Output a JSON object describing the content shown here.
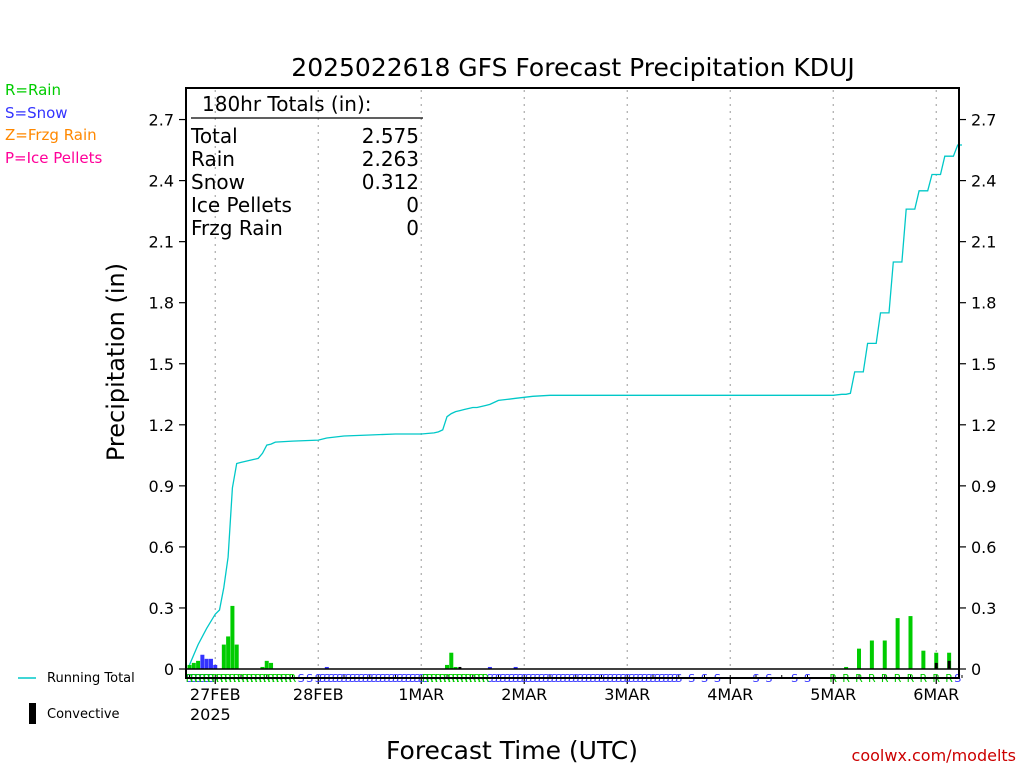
{
  "chart_data": {
    "type": "bar",
    "title": "2025022618 GFS Forecast Precipitation KDUJ",
    "xlabel": "Forecast Time (UTC)",
    "ylabel": "Precipitation (in)",
    "ylim": [
      0,
      2.8
    ],
    "yticks": [
      0,
      0.3,
      0.6,
      0.9,
      1.2,
      1.5,
      1.8,
      2.1,
      2.4,
      2.7
    ],
    "ytick_labels": [
      "0",
      "0.3",
      "0.6",
      "0.9",
      "1.2",
      "1.5",
      "1.8",
      "2.1",
      "2.4",
      "2.7"
    ],
    "x_unit": "forecast hour",
    "xlim": [
      -3,
      180
    ],
    "xtick_hours": [
      6,
      30,
      54,
      78,
      102,
      126,
      150,
      174
    ],
    "xtick_labels": [
      "27FEB",
      "28FEB",
      "1MAR",
      "2MAR",
      "3MAR",
      "4MAR",
      "5MAR",
      "6MAR"
    ],
    "year_label": "2025",
    "grid": "vertical dotted at each day",
    "key": [
      {
        "text": "R=Rain",
        "color": "#00cc00"
      },
      {
        "text": "S=Snow",
        "color": "#3333ff"
      },
      {
        "text": "Z=Frzg Rain",
        "color": "#ff8800"
      },
      {
        "text": "P=Ice Pellets",
        "color": "#ff0099"
      }
    ],
    "legend": [
      {
        "text": "Running Total",
        "color": "#00c8c8"
      },
      {
        "text": "Convective",
        "color": "#000000"
      }
    ],
    "totals": {
      "header": "180hr Totals (in):",
      "rows": [
        {
          "label": "Total",
          "value": "2.575"
        },
        {
          "label": "Rain",
          "value": "2.263"
        },
        {
          "label": "Snow",
          "value": "0.312"
        },
        {
          "label": "Ice Pellets",
          "value": "0"
        },
        {
          "label": "Frzg Rain",
          "value": "0"
        }
      ]
    },
    "series": [
      {
        "name": "Rain",
        "color": "#00cc00",
        "points": [
          {
            "hour": 0,
            "value": 0.02
          },
          {
            "hour": 1,
            "value": 0.03
          },
          {
            "hour": 2,
            "value": 0.04
          },
          {
            "hour": 8,
            "value": 0.12
          },
          {
            "hour": 9,
            "value": 0.16
          },
          {
            "hour": 10,
            "value": 0.31
          },
          {
            "hour": 11,
            "value": 0.12
          },
          {
            "hour": 17,
            "value": 0.01
          },
          {
            "hour": 18,
            "value": 0.04
          },
          {
            "hour": 19,
            "value": 0.03
          },
          {
            "hour": 60,
            "value": 0.02
          },
          {
            "hour": 61,
            "value": 0.08
          },
          {
            "hour": 62,
            "value": 0.01
          },
          {
            "hour": 153,
            "value": 0.01
          },
          {
            "hour": 156,
            "value": 0.1
          },
          {
            "hour": 159,
            "value": 0.14
          },
          {
            "hour": 162,
            "value": 0.14
          },
          {
            "hour": 165,
            "value": 0.25
          },
          {
            "hour": 168,
            "value": 0.26
          },
          {
            "hour": 171,
            "value": 0.09
          },
          {
            "hour": 174,
            "value": 0.08
          },
          {
            "hour": 177,
            "value": 0.08
          }
        ]
      },
      {
        "name": "Snow",
        "color": "#3333ff",
        "points": [
          {
            "hour": 3,
            "value": 0.07
          },
          {
            "hour": 4,
            "value": 0.05
          },
          {
            "hour": 5,
            "value": 0.05
          },
          {
            "hour": 6,
            "value": 0.02
          },
          {
            "hour": 32,
            "value": 0.01
          },
          {
            "hour": 70,
            "value": 0.01
          },
          {
            "hour": 76,
            "value": 0.01
          }
        ]
      },
      {
        "name": "Convective",
        "color": "#000000",
        "points": [
          {
            "hour": 63,
            "value": 0.01
          },
          {
            "hour": 174,
            "value": 0.03
          },
          {
            "hour": 177,
            "value": 0.04
          }
        ]
      }
    ],
    "running_total": {
      "name": "Running Total",
      "color": "#00c8c8",
      "x": [
        0,
        2,
        4,
        6,
        7,
        8,
        9,
        10,
        11,
        12,
        13,
        14,
        15,
        16,
        17,
        18,
        19,
        20,
        24,
        30,
        32,
        36,
        42,
        48,
        54,
        57,
        58,
        59,
        60,
        61,
        62,
        63,
        64,
        66,
        67,
        68,
        69,
        70,
        71,
        72,
        74,
        76,
        78,
        80,
        84,
        90,
        96,
        102,
        108,
        114,
        120,
        126,
        132,
        138,
        144,
        150,
        152,
        153,
        154,
        155,
        156,
        157,
        158,
        159,
        160,
        161,
        162,
        163,
        164,
        165,
        166,
        167,
        168,
        169,
        170,
        171,
        172,
        173,
        174,
        175,
        176,
        177,
        178,
        179,
        180
      ],
      "y": [
        0.02,
        0.12,
        0.2,
        0.27,
        0.29,
        0.4,
        0.55,
        0.89,
        1.01,
        1.015,
        1.02,
        1.025,
        1.03,
        1.035,
        1.06,
        1.1,
        1.105,
        1.115,
        1.12,
        1.125,
        1.135,
        1.145,
        1.15,
        1.155,
        1.155,
        1.16,
        1.165,
        1.175,
        1.24,
        1.255,
        1.265,
        1.27,
        1.275,
        1.285,
        1.285,
        1.29,
        1.295,
        1.3,
        1.31,
        1.32,
        1.325,
        1.33,
        1.335,
        1.34,
        1.345,
        1.345,
        1.345,
        1.345,
        1.345,
        1.345,
        1.345,
        1.345,
        1.345,
        1.345,
        1.345,
        1.345,
        1.35,
        1.35,
        1.355,
        1.46,
        1.46,
        1.46,
        1.6,
        1.6,
        1.6,
        1.75,
        1.75,
        1.75,
        2.0,
        2.0,
        2.0,
        2.26,
        2.26,
        2.26,
        2.35,
        2.35,
        2.35,
        2.43,
        2.43,
        2.43,
        2.52,
        2.52,
        2.52,
        2.575,
        2.575
      ]
    },
    "precip_type_markers": {
      "rain_hours": [
        0,
        1,
        2,
        3,
        4,
        5,
        6,
        7,
        8,
        9,
        10,
        11,
        12,
        13,
        14,
        15,
        16,
        17,
        18,
        19,
        20,
        21,
        22,
        23,
        24,
        55,
        56,
        57,
        58,
        59,
        60,
        61,
        62,
        63,
        64,
        65,
        66,
        67,
        68,
        69,
        150,
        153,
        156,
        159,
        162,
        165,
        168,
        171,
        174,
        177
      ],
      "snow_hours": [
        0,
        1,
        2,
        3,
        4,
        5,
        26,
        28,
        30,
        31,
        32,
        33,
        34,
        35,
        36,
        37,
        38,
        39,
        40,
        41,
        42,
        43,
        44,
        45,
        46,
        47,
        48,
        49,
        50,
        51,
        52,
        53,
        54,
        55,
        70,
        71,
        72,
        73,
        74,
        75,
        76,
        77,
        78,
        79,
        80,
        81,
        82,
        83,
        84,
        85,
        86,
        87,
        88,
        89,
        90,
        91,
        92,
        93,
        94,
        95,
        96,
        97,
        98,
        99,
        100,
        101,
        102,
        103,
        104,
        105,
        106,
        107,
        108,
        109,
        110,
        111,
        112,
        113,
        114,
        117,
        120,
        123,
        132,
        135,
        141,
        144,
        179
      ]
    },
    "credit": "coolwx.com/modelts"
  }
}
